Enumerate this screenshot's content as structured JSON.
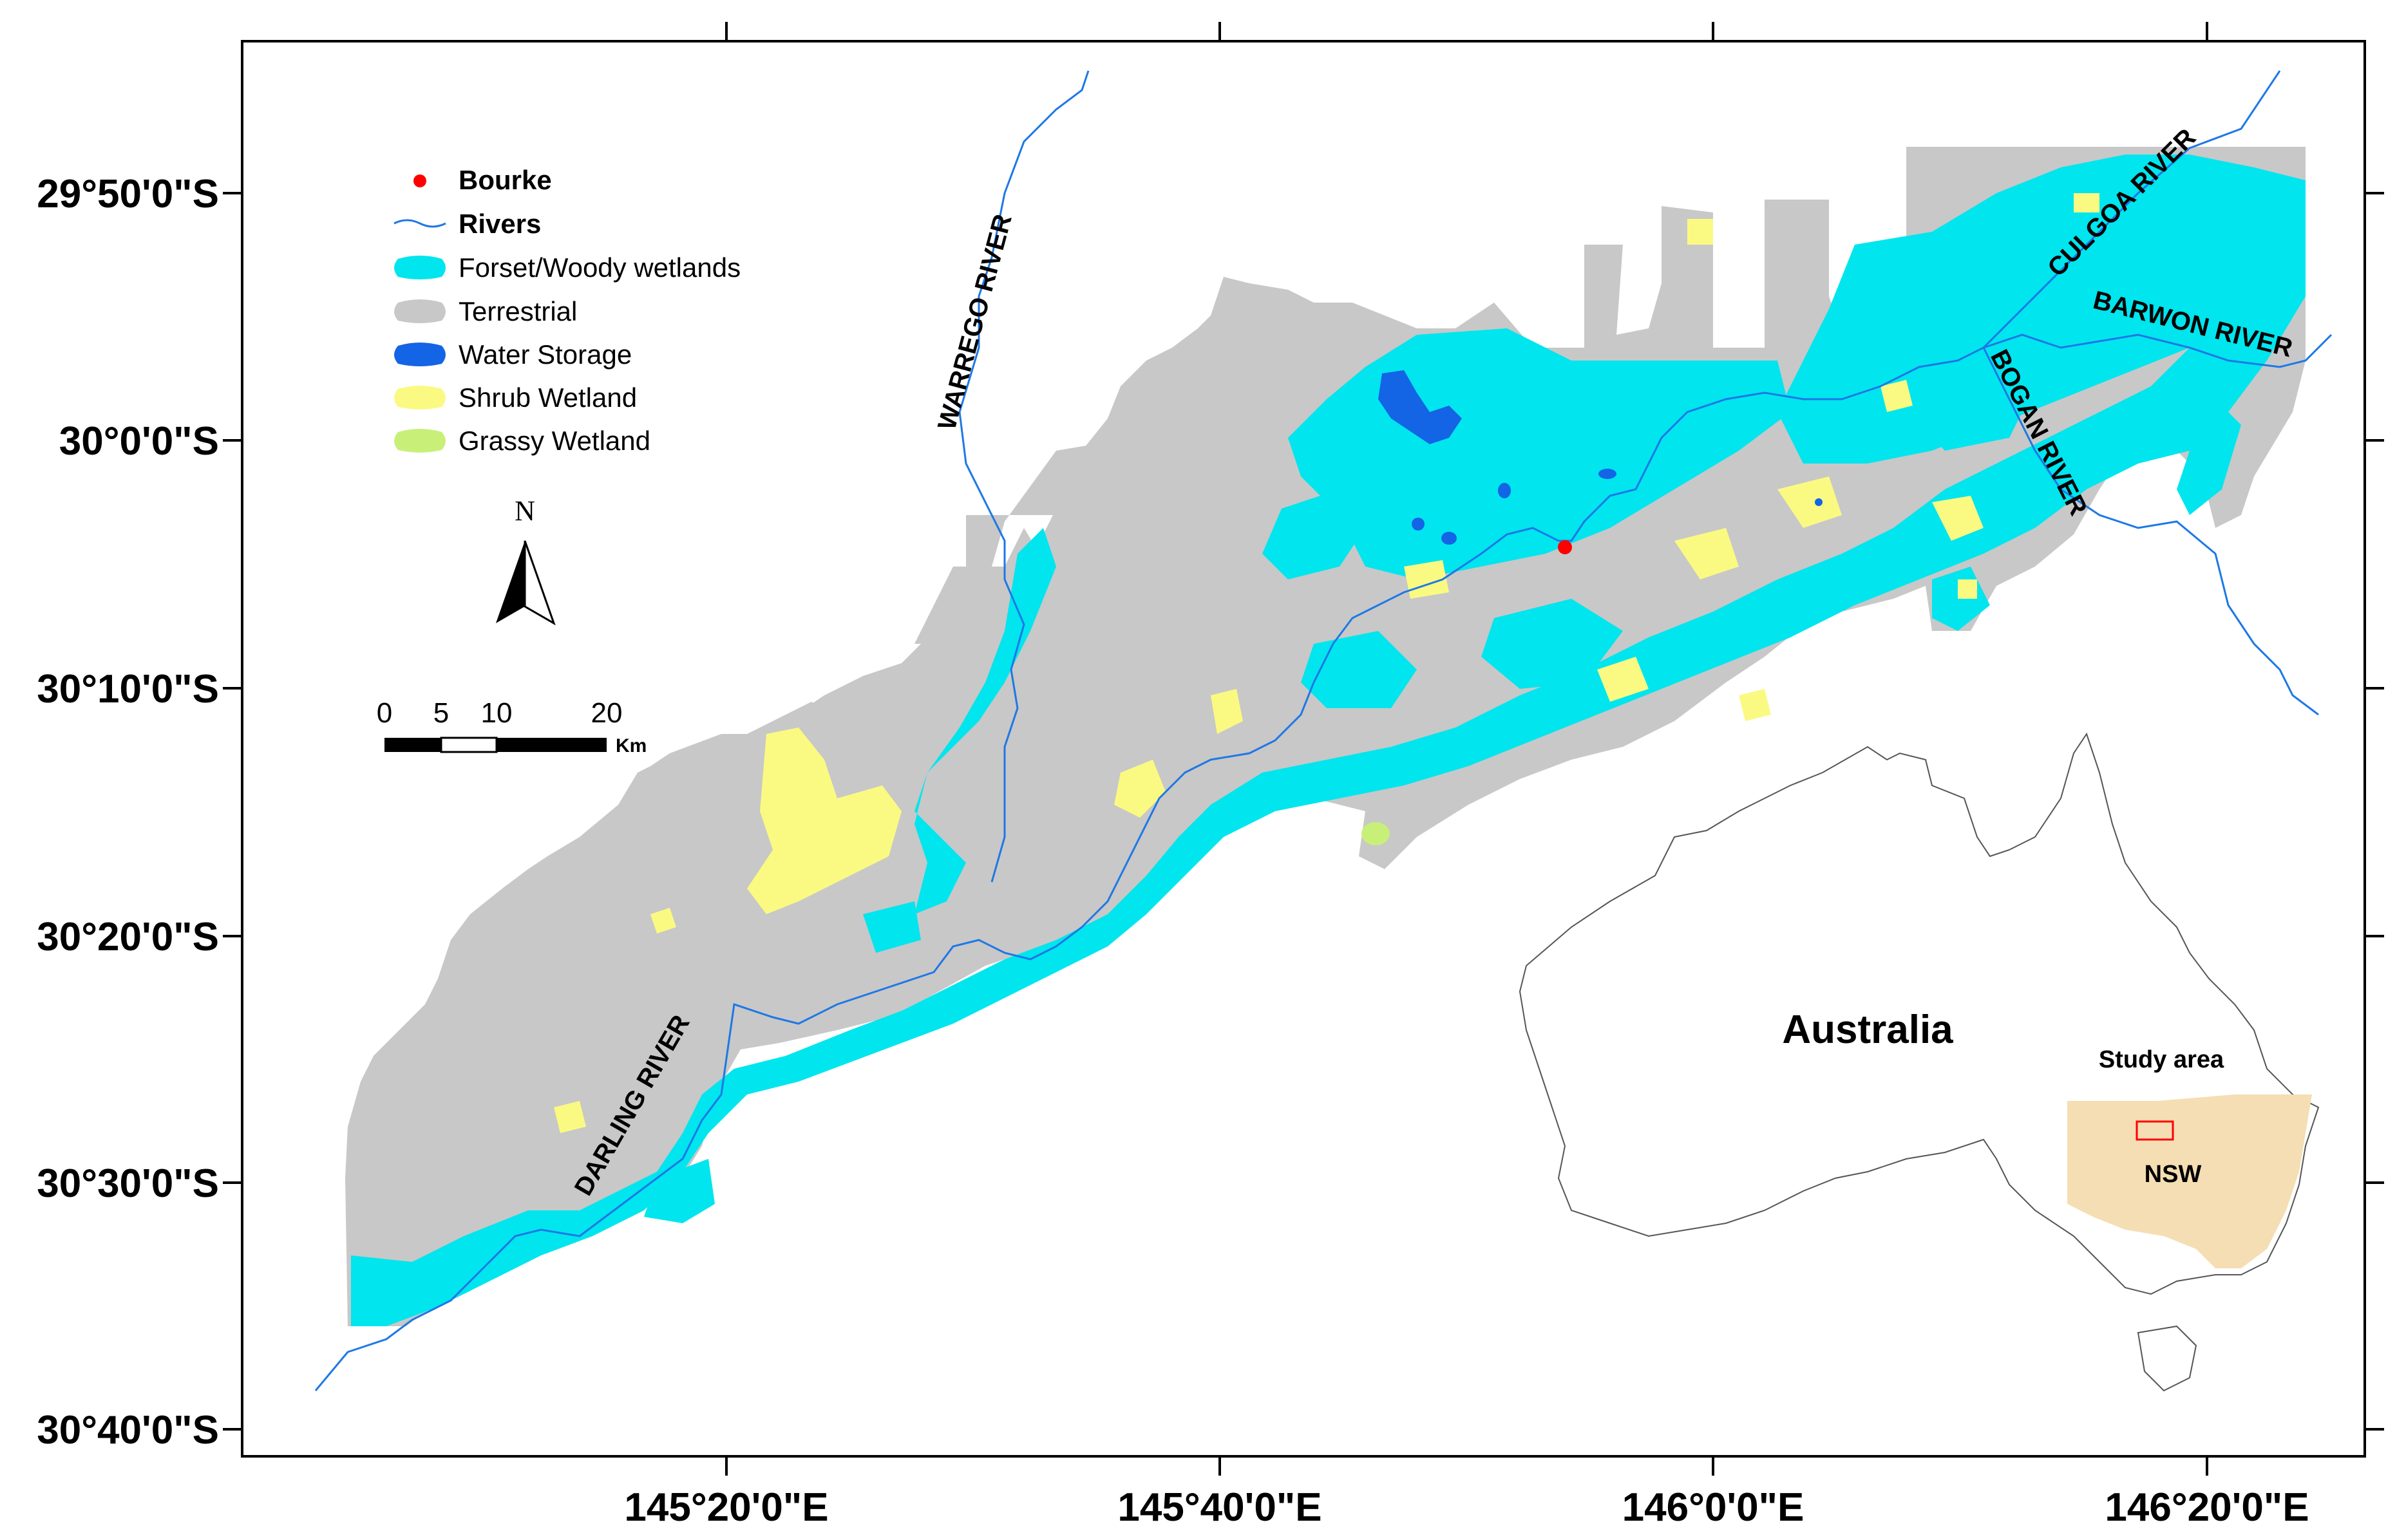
{
  "map": {
    "lat_ticks": [
      "29°50'0\"S",
      "30°0'0\"S",
      "30°10'0\"S",
      "30°20'0\"S",
      "30°30'0\"S",
      "30°40'0\"S"
    ],
    "lon_ticks": [
      "145°20'0\"E",
      "145°40'0\"E",
      "146°0'0\"E",
      "146°20'0\"E"
    ],
    "colors": {
      "terrestrial": "#c8c8c8",
      "forest_wetland": "#00e5ee",
      "water_storage": "#1464e6",
      "shrub_wetland": "#fafa82",
      "grassy_wetland": "#c8f078",
      "river": "#1e78e6",
      "bourke": "#ff0000",
      "nsw": "#f5deb3"
    }
  },
  "legend": {
    "items": [
      {
        "label": "Bourke",
        "symbol": "point",
        "bold": true
      },
      {
        "label": "Rivers",
        "symbol": "line",
        "bold": true
      },
      {
        "label": "Forset/Woody wetlands",
        "symbol": "forest"
      },
      {
        "label": "Terrestrial",
        "symbol": "terrestrial"
      },
      {
        "label": "Water Storage",
        "symbol": "water"
      },
      {
        "label": "Shrub Wetland",
        "symbol": "shrub"
      },
      {
        "label": "Grassy Wetland",
        "symbol": "grassy"
      }
    ]
  },
  "north_arrow": {
    "label": "N"
  },
  "scale_bar": {
    "ticks": [
      "0",
      "5",
      "10",
      "20"
    ],
    "unit": "Km"
  },
  "river_labels": {
    "warrego": "WARREGO RIVER",
    "culgoa": "CULGOA RIVER",
    "barwon": "BARWON RIVER",
    "bogan": "BOGAN RIVER",
    "darling": "DARLING RIVER"
  },
  "inset": {
    "title": "Australia",
    "study_area": "Study area",
    "state": "NSW"
  }
}
